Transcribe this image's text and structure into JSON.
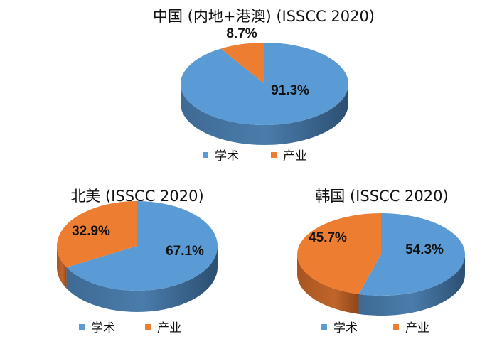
{
  "colors": {
    "academia": "#5b9bd5",
    "industry": "#ed7d31"
  },
  "chart_data": [
    {
      "type": "pie",
      "title": "中国 (内地+港澳)  (ISSCC 2020)",
      "categories": [
        "学术",
        "产业"
      ],
      "values": [
        91.3,
        8.7
      ],
      "data_labels": [
        "91.3%",
        "8.7%"
      ],
      "legend": [
        "学术",
        "产业"
      ],
      "legend_position": "bottom"
    },
    {
      "type": "pie",
      "title": "北美 (ISSCC 2020)",
      "categories": [
        "学术",
        "产业"
      ],
      "values": [
        67.1,
        32.9
      ],
      "data_labels": [
        "67.1%",
        "32.9%"
      ],
      "legend": [
        "学术",
        "产业"
      ],
      "legend_position": "bottom"
    },
    {
      "type": "pie",
      "title": "韩国 (ISSCC 2020)",
      "categories": [
        "学术",
        "产业"
      ],
      "values": [
        54.3,
        45.7
      ],
      "data_labels": [
        "54.3%",
        "45.7%"
      ],
      "legend": [
        "学术",
        "产业"
      ],
      "legend_position": "bottom"
    }
  ]
}
